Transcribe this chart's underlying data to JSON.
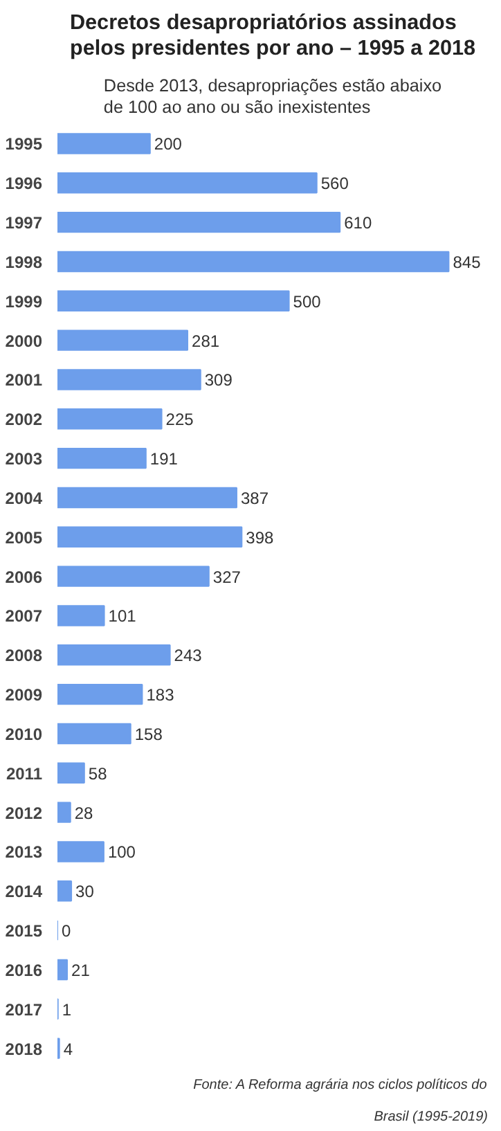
{
  "chart_data": {
    "type": "bar",
    "orientation": "horizontal",
    "title": "Decretos desapropriatórios assinados pelos presidentes por ano – 1995 a 2018",
    "subtitle": "Desde 2013, desapropriações estão abaixo de 100 ao ano ou são inexistentes",
    "categories": [
      "1995",
      "1996",
      "1997",
      "1998",
      "1999",
      "2000",
      "2001",
      "2002",
      "2003",
      "2004",
      "2005",
      "2006",
      "2007",
      "2008",
      "2009",
      "2010",
      "2011",
      "2012",
      "2013",
      "2014",
      "2015",
      "2016",
      "2017",
      "2018"
    ],
    "values": [
      200,
      560,
      610,
      845,
      500,
      281,
      309,
      225,
      191,
      387,
      398,
      327,
      101,
      243,
      183,
      158,
      58,
      28,
      100,
      30,
      0,
      21,
      1,
      4
    ],
    "color": "#6d9eeb",
    "data_labels": true,
    "tick_labels": "y",
    "grid": false,
    "annotations": [
      "Fonte: A Reforma agrária nos ciclos políticos do Brasil (1995-2019)"
    ]
  }
}
